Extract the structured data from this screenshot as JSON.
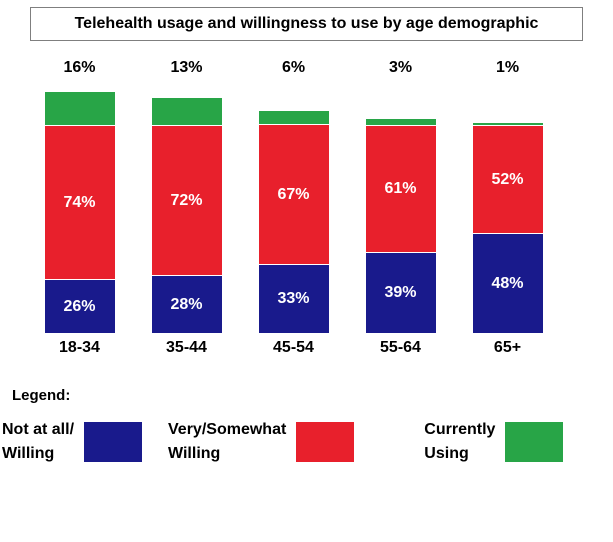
{
  "title": "Telehealth usage and willingness to use by age demographic",
  "chart_data": {
    "type": "bar",
    "stacked": true,
    "title": "Telehealth usage and willingness to use by age demographic",
    "categories": [
      "18-34",
      "35-44",
      "45-54",
      "55-64",
      "65+"
    ],
    "series": [
      {
        "key": "not-at-all-willing",
        "name": "Not at all/Willing",
        "color": "#191A8C",
        "values": [
          26,
          28,
          33,
          39,
          48
        ],
        "labels_inside": true
      },
      {
        "key": "very-somewhat-willing",
        "name": "Very/Somewhat Willing",
        "color": "#E8202C",
        "values": [
          74,
          72,
          67,
          61,
          52
        ],
        "labels_inside": true
      },
      {
        "key": "currently-using",
        "name": "Currently Using",
        "color": "#28A547",
        "values": [
          16,
          13,
          6,
          3,
          1
        ],
        "labels_inside": false
      }
    ],
    "value_suffix": "%",
    "ylim": [
      0,
      120
    ],
    "grid": false,
    "legend_position": "bottom"
  },
  "legend": {
    "heading": "Legend:",
    "items": [
      {
        "key": "not-at-all-willing",
        "line1": "Not at all/",
        "line2": "Willing",
        "color": "#191A8C"
      },
      {
        "key": "very-somewhat-willing",
        "line1": "Very/Somewhat",
        "line2": "Willing",
        "color": "#E8202C"
      },
      {
        "key": "currently-using",
        "line1": "Currently",
        "line2": "Using",
        "color": "#28A547"
      }
    ]
  }
}
